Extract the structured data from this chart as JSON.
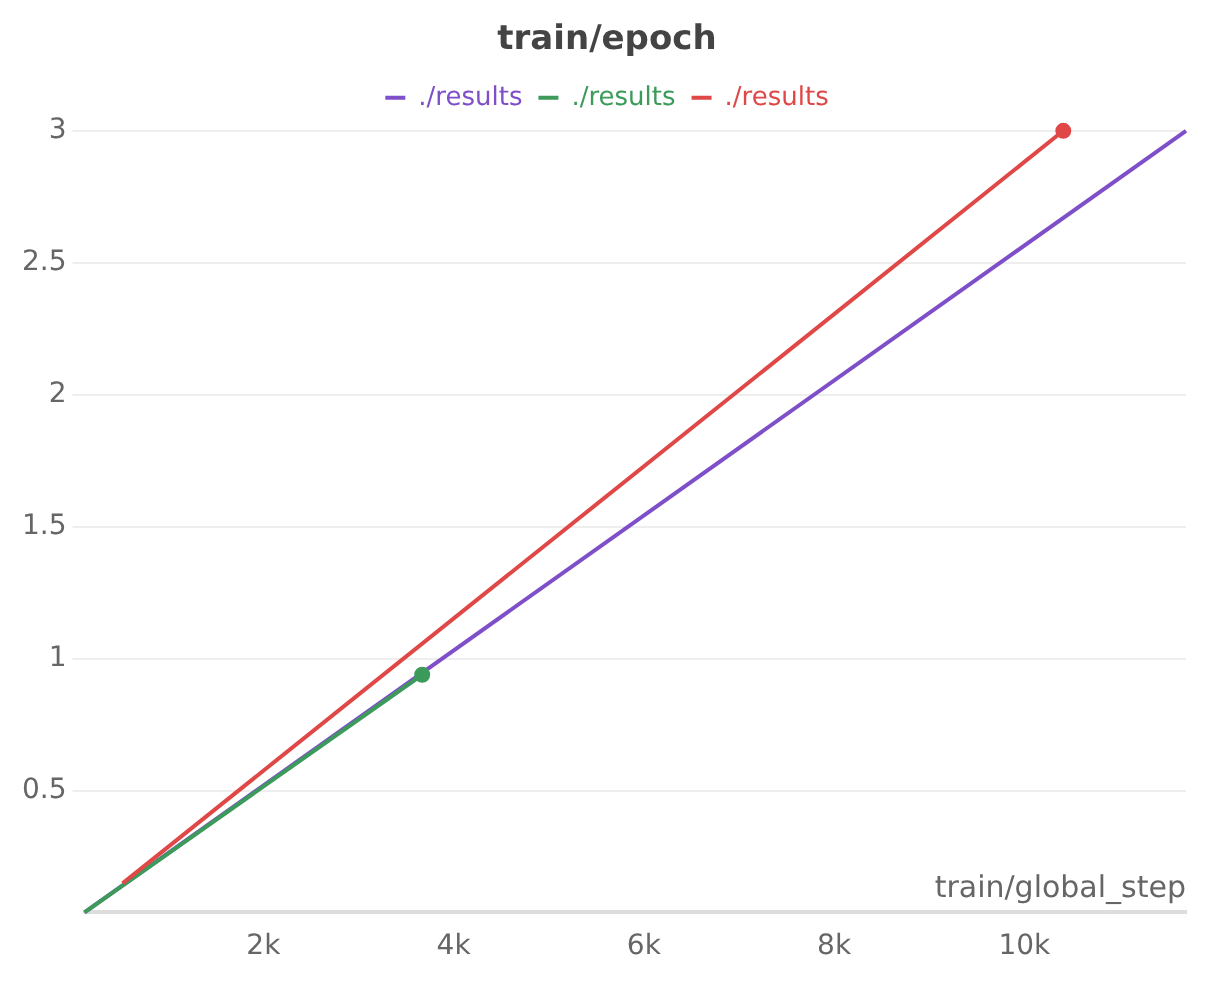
{
  "chart_data": {
    "type": "line",
    "title": "train/epoch",
    "xlabel": "train/global_step",
    "xlim": [
      120,
      11700
    ],
    "ylim": [
      0.04,
      3
    ],
    "xticks": [
      {
        "value": 2000,
        "label": "2k"
      },
      {
        "value": 4000,
        "label": "4k"
      },
      {
        "value": 6000,
        "label": "6k"
      },
      {
        "value": 8000,
        "label": "8k"
      },
      {
        "value": 10000,
        "label": "10k"
      }
    ],
    "yticks": [
      0.5,
      1,
      1.5,
      2,
      2.5,
      3
    ],
    "grid": "y",
    "legend": "top",
    "series": [
      {
        "name": "./results",
        "color": "#7e4fc9",
        "x": [
          120,
          11700
        ],
        "values": [
          0.04,
          3.0
        ]
      },
      {
        "name": "./results",
        "color": "#3c9a5a",
        "x": [
          120,
          3670
        ],
        "values": [
          0.04,
          0.94
        ],
        "marker": "circle"
      },
      {
        "name": "./results",
        "color": "#e04848",
        "x": [
          520,
          10410
        ],
        "values": [
          0.15,
          3.0
        ],
        "marker": "circle"
      }
    ]
  }
}
